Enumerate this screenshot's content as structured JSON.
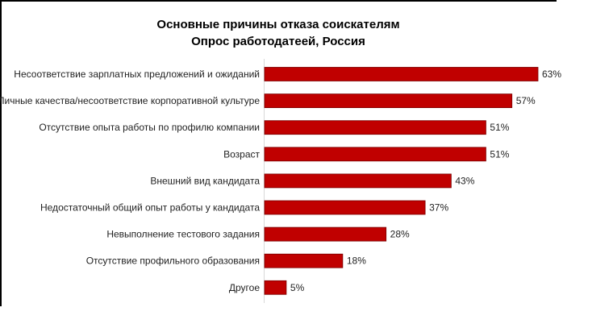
{
  "chart_data": {
    "type": "bar",
    "orientation": "horizontal",
    "title": "Основные причины отказа соискателям",
    "subtitle": "Опрос работодатеей, Россия",
    "categories": [
      "Несоответствие зарплатных предложений и ожиданий",
      "Личные качества/несоответствие корпоративной культуре",
      "Отсутствие опыта работы по профилю компании",
      "Возраст",
      "Внешний вид кандидата",
      "Недостаточный общий опыт работы у кандидата",
      "Невыполнение тестового задания",
      "Отсутствие профильного образования",
      "Другое"
    ],
    "values": [
      63,
      57,
      51,
      51,
      43,
      37,
      28,
      18,
      5
    ],
    "value_labels": [
      "63%",
      "57%",
      "51%",
      "51%",
      "43%",
      "37%",
      "28%",
      "18%",
      "5%"
    ],
    "unit": "%",
    "xlim": [
      0,
      63
    ],
    "grid": false,
    "bar_color": "#c00000",
    "bar_edge_color": "#7a0000"
  }
}
